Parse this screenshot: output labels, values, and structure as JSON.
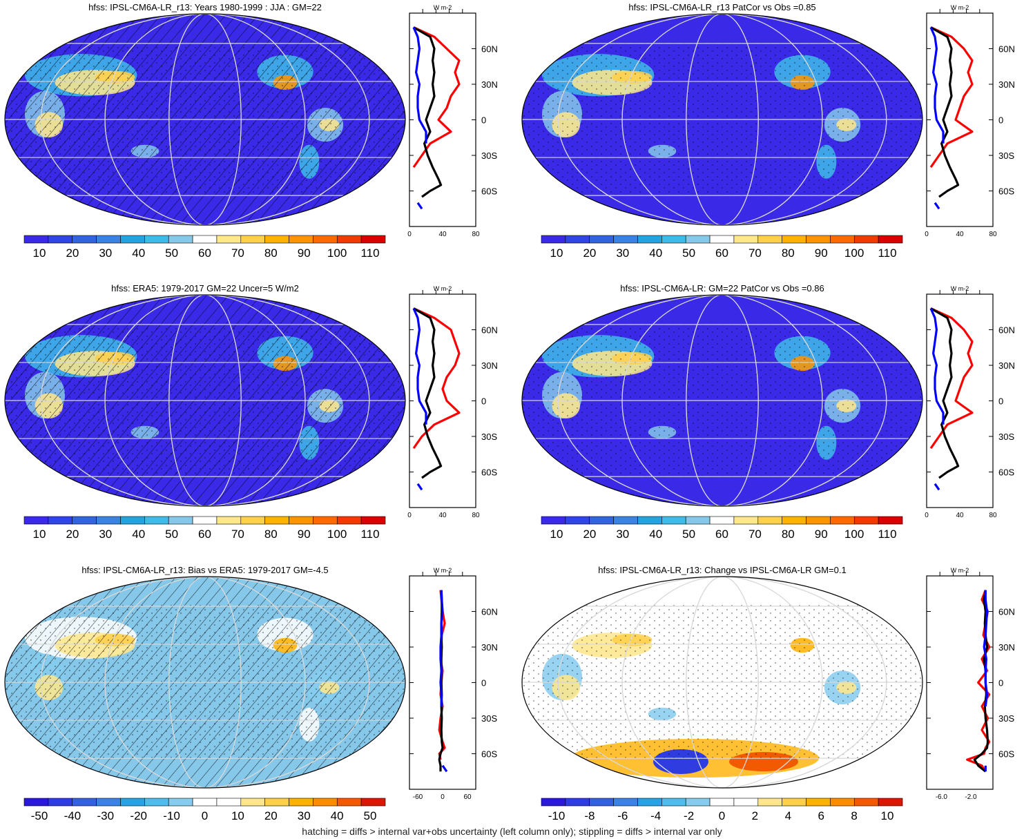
{
  "figure": {
    "footnote": "hatching = diffs > internal var+obs uncertainty (left column only); stippling = diffs > internal var only"
  },
  "chart_data": [
    {
      "type": "heatmap",
      "id": "p1",
      "title": "hfss: IPSL-CM6A-LR_r13: Years 1980-1999 : JJA : GM=22",
      "colorbar": {
        "labels": [
          "10",
          "20",
          "30",
          "40",
          "50",
          "60",
          "70",
          "80",
          "90",
          "100",
          "110"
        ],
        "palette": "abs"
      },
      "hatching": true,
      "stippling": true,
      "profile": {
        "units_label": "W m-2",
        "xlim": [
          0,
          80
        ],
        "xticks": [
          "0",
          "40",
          "80"
        ],
        "ylim": [
          -90,
          90
        ],
        "yticks": [
          "60N",
          "30N",
          "0",
          "30S",
          "60S"
        ],
        "lat": [
          78,
          70,
          60,
          50,
          40,
          30,
          20,
          10,
          0,
          -10,
          -20,
          -30,
          -40,
          -50,
          -55,
          -60,
          -65,
          -70,
          -75
        ],
        "series": [
          {
            "color": "#ff0000",
            "values": [
              5,
              30,
              45,
              60,
              55,
              60,
              50,
              45,
              35,
              50,
              25,
              15,
              5,
              null,
              null,
              null,
              null,
              null,
              null
            ]
          },
          {
            "color": "#000000",
            "values": [
              5,
              25,
              30,
              28,
              30,
              28,
              30,
              25,
              20,
              25,
              18,
              22,
              28,
              35,
              38,
              25,
              15,
              null,
              null
            ]
          },
          {
            "color": "#0000ff",
            "values": [
              5,
              10,
              12,
              10,
              8,
              12,
              10,
              10,
              12,
              20,
              20,
              null,
              null,
              null,
              null,
              null,
              null,
              10,
              15
            ]
          }
        ]
      }
    },
    {
      "type": "heatmap",
      "id": "p2",
      "title": "hfss: IPSL-CM6A-LR_r13 PatCor vs Obs =0.85",
      "colorbar": {
        "labels": [
          "10",
          "20",
          "30",
          "40",
          "50",
          "60",
          "70",
          "80",
          "90",
          "100",
          "110"
        ],
        "palette": "abs"
      },
      "hatching": false,
      "stippling": true,
      "profile": {
        "units_label": "W m-2",
        "xlim": [
          0,
          80
        ],
        "xticks": [
          "0",
          "40",
          "80"
        ],
        "ylim": [
          -90,
          90
        ],
        "yticks": [
          "60N",
          "30N",
          "0",
          "30S",
          "60S"
        ],
        "lat": [
          78,
          70,
          60,
          50,
          40,
          30,
          20,
          10,
          0,
          -10,
          -20,
          -30,
          -40,
          -50,
          -55,
          -60,
          -65,
          -70,
          -75
        ],
        "series": [
          {
            "color": "#ff0000",
            "values": [
              5,
              30,
              45,
              55,
              50,
              55,
              45,
              40,
              35,
              55,
              25,
              15,
              5,
              null,
              null,
              null,
              null,
              null,
              null
            ]
          },
          {
            "color": "#000000",
            "values": [
              5,
              25,
              30,
              28,
              30,
              28,
              30,
              25,
              20,
              25,
              18,
              22,
              28,
              35,
              38,
              25,
              15,
              null,
              null
            ]
          },
          {
            "color": "#0000ff",
            "values": [
              5,
              10,
              12,
              10,
              8,
              12,
              10,
              10,
              12,
              20,
              20,
              null,
              null,
              null,
              null,
              null,
              null,
              10,
              15
            ]
          }
        ]
      }
    },
    {
      "type": "heatmap",
      "id": "p3",
      "title": "hfss: ERA5: 1979-2017 GM=22 Uncer=5 W/m2",
      "colorbar": {
        "labels": [
          "10",
          "20",
          "30",
          "40",
          "50",
          "60",
          "70",
          "80",
          "90",
          "100",
          "110"
        ],
        "palette": "abs"
      },
      "hatching": true,
      "stippling": true,
      "profile": {
        "units_label": "W m-2",
        "xlim": [
          0,
          80
        ],
        "xticks": [
          "0",
          "40",
          "80"
        ],
        "ylim": [
          -90,
          90
        ],
        "yticks": [
          "60N",
          "30N",
          "0",
          "30S",
          "60S"
        ],
        "lat": [
          78,
          70,
          60,
          50,
          40,
          30,
          20,
          10,
          0,
          -10,
          -20,
          -30,
          -40,
          -50,
          -55,
          -60,
          -65,
          -70,
          -75
        ],
        "series": [
          {
            "color": "#ff0000",
            "values": [
              5,
              30,
              50,
              55,
              60,
              55,
              45,
              40,
              45,
              60,
              30,
              15,
              5,
              null,
              null,
              null,
              null,
              null,
              null
            ]
          },
          {
            "color": "#000000",
            "values": [
              5,
              25,
              30,
              28,
              30,
              28,
              30,
              25,
              20,
              25,
              18,
              22,
              28,
              35,
              38,
              25,
              15,
              null,
              null
            ]
          },
          {
            "color": "#0000ff",
            "values": [
              5,
              10,
              12,
              10,
              8,
              12,
              10,
              10,
              12,
              20,
              20,
              null,
              null,
              null,
              null,
              null,
              null,
              10,
              15
            ]
          }
        ]
      }
    },
    {
      "type": "heatmap",
      "id": "p4",
      "title": "hfss: IPSL-CM6A-LR: GM=22 PatCor vs Obs =0.86",
      "colorbar": {
        "labels": [
          "10",
          "20",
          "30",
          "40",
          "50",
          "60",
          "70",
          "80",
          "90",
          "100",
          "110"
        ],
        "palette": "abs"
      },
      "hatching": false,
      "stippling": true,
      "profile": {
        "units_label": "W m-2",
        "xlim": [
          0,
          80
        ],
        "xticks": [
          "0",
          "40",
          "80"
        ],
        "ylim": [
          -90,
          90
        ],
        "yticks": [
          "60N",
          "30N",
          "0",
          "30S",
          "60S"
        ],
        "lat": [
          78,
          70,
          60,
          50,
          40,
          30,
          20,
          10,
          0,
          -10,
          -20,
          -30,
          -40,
          -50,
          -55,
          -60,
          -65,
          -70,
          -75
        ],
        "series": [
          {
            "color": "#ff0000",
            "values": [
              5,
              30,
              45,
              55,
              50,
              55,
              45,
              40,
              35,
              55,
              25,
              15,
              5,
              null,
              null,
              null,
              null,
              null,
              null
            ]
          },
          {
            "color": "#000000",
            "values": [
              5,
              25,
              30,
              28,
              30,
              28,
              30,
              25,
              20,
              25,
              18,
              22,
              28,
              35,
              38,
              25,
              15,
              null,
              null
            ]
          },
          {
            "color": "#0000ff",
            "values": [
              5,
              10,
              12,
              10,
              8,
              12,
              10,
              10,
              12,
              20,
              20,
              null,
              null,
              null,
              null,
              null,
              null,
              10,
              15
            ]
          }
        ]
      }
    },
    {
      "type": "heatmap",
      "id": "p5",
      "title": "hfss: IPSL-CM6A-LR_r13: Bias vs ERA5: 1979-2017 GM=-4.5",
      "colorbar": {
        "labels": [
          "-50",
          "-40",
          "-30",
          "-20",
          "-10",
          "0",
          "10",
          "20",
          "30",
          "40",
          "50"
        ],
        "palette": "diff"
      },
      "hatching": true,
      "stippling": true,
      "profile": {
        "units_label": "W m-2",
        "xlim": [
          -80,
          80
        ],
        "xticks": [
          "-60",
          "0",
          "60"
        ],
        "ylim": [
          -90,
          90
        ],
        "yticks": [
          "60N",
          "30N",
          "0",
          "30S",
          "60S"
        ],
        "lat": [
          78,
          70,
          60,
          50,
          40,
          30,
          20,
          10,
          0,
          -10,
          -20,
          -30,
          -40,
          -50,
          -55,
          -60,
          -65,
          -70,
          -75
        ],
        "series": [
          {
            "color": "#ff0000",
            "values": [
              -5,
              -3,
              0,
              5,
              -2,
              -3,
              -5,
              0,
              -3,
              -5,
              0,
              -5,
              -8,
              0,
              5,
              -8,
              -5,
              null,
              null
            ]
          },
          {
            "color": "#000000",
            "values": [
              -3,
              -2,
              -2,
              -3,
              -3,
              -2,
              -3,
              -3,
              -3,
              -2,
              -3,
              -2,
              -3,
              -2,
              0,
              -5,
              -8,
              -5,
              -5
            ]
          },
          {
            "color": "#0000ff",
            "values": [
              -3,
              -2,
              0,
              -3,
              -3,
              -5,
              -5,
              -3,
              -5,
              -3,
              -3,
              null,
              null,
              null,
              null,
              null,
              null,
              0,
              10
            ]
          }
        ]
      }
    },
    {
      "type": "heatmap",
      "id": "p6",
      "title": "hfss: IPSL-CM6A-LR_r13: Change vs IPSL-CM6A-LR GM=0.1",
      "colorbar": {
        "labels": [
          "-10",
          "-8",
          "-6",
          "-4",
          "-2",
          "0",
          "2",
          "4",
          "6",
          "8",
          "10"
        ],
        "palette": "diff"
      },
      "hatching": false,
      "stippling": true,
      "profile": {
        "units_label": "W m-2",
        "xlim": [
          -8,
          1
        ],
        "xticks": [
          "-6.0",
          "-2.0"
        ],
        "ylim": [
          -90,
          90
        ],
        "yticks": [
          "60N",
          "30N",
          "0",
          "30S",
          "60S"
        ],
        "lat": [
          78,
          70,
          60,
          50,
          40,
          30,
          20,
          10,
          0,
          -10,
          -20,
          -30,
          -40,
          -50,
          -55,
          -60,
          -65,
          -70,
          -75
        ],
        "series": [
          {
            "color": "#ff0000",
            "values": [
              0,
              -0.5,
              0.3,
              0,
              -0.3,
              0.5,
              -0.5,
              0.2,
              -1.0,
              0.5,
              -0.5,
              0.3,
              -0.5,
              0.5,
              0,
              -0.2,
              -2.5,
              -0.5,
              0
            ]
          },
          {
            "color": "#000000",
            "values": [
              0,
              -0.2,
              0,
              -0.1,
              0,
              0.2,
              -0.2,
              0,
              0,
              0.1,
              -0.1,
              0,
              0.2,
              0.3,
              0.2,
              -0.5,
              -1.5,
              -1.0,
              0
            ]
          },
          {
            "color": "#0000ff",
            "values": [
              0,
              0,
              0.2,
              0.1,
              0,
              -0.2,
              0.1,
              0,
              0,
              0.2,
              0,
              null,
              null,
              null,
              null,
              null,
              null,
              0,
              0
            ]
          }
        ]
      }
    }
  ]
}
